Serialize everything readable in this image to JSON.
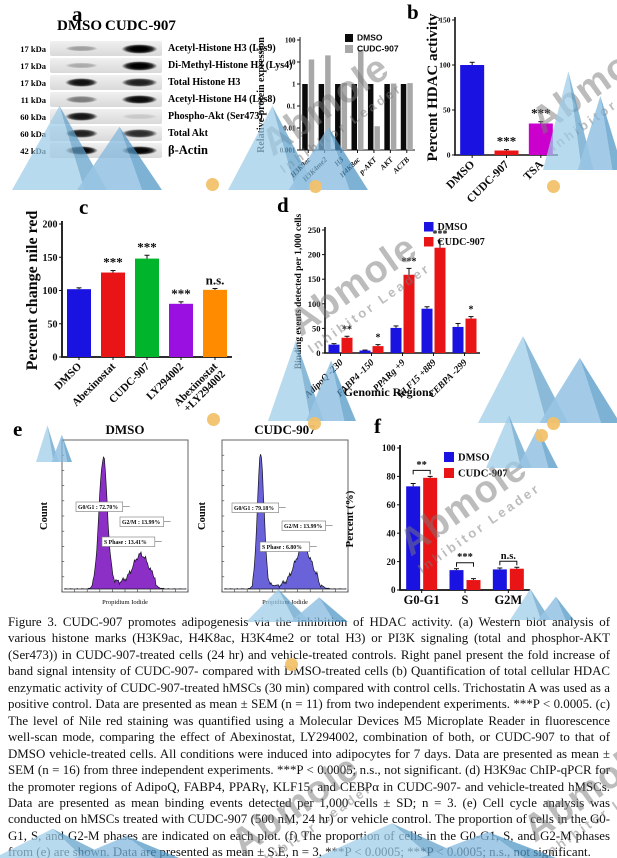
{
  "watermark": {
    "brand": "Abmole",
    "tagline": "Inhibitor Leader"
  },
  "panel_a": {
    "label": "a",
    "col_headers": [
      "DMSO",
      "CUDC-907"
    ],
    "blot_rows": [
      {
        "kda": "17 kDa",
        "protein": "Acetyl-Histone H3 (Lys9)",
        "lane1": 0.3,
        "lane2": 1.0
      },
      {
        "kda": "17 kDa",
        "protein": "Di-Methyl-Histone H3 (Lys4)",
        "lane1": 0.25,
        "lane2": 1.0
      },
      {
        "kda": "17 kDa",
        "protein": "Total Histone H3",
        "lane1": 0.92,
        "lane2": 0.85
      },
      {
        "kda": "11 kDa",
        "protein": "Acetyl-Histone H4 (Lys8)",
        "lane1": 0.45,
        "lane2": 0.95
      },
      {
        "kda": "60 kDa",
        "protein": "Phospho-Akt (Ser473)",
        "lane1": 0.9,
        "lane2": 0.12
      },
      {
        "kda": "60 kDa",
        "protein": "Total Akt",
        "lane1": 0.85,
        "lane2": 0.8
      },
      {
        "kda": "42 kDa",
        "protein": "β-Actin",
        "lane1": 0.97,
        "lane2": 0.97
      }
    ]
  },
  "panel_b": {
    "label": "b"
  },
  "panel_c": {
    "label": "c"
  },
  "panel_d": {
    "label": "d"
  },
  "panel_e": {
    "label": "e"
  },
  "panel_f": {
    "label": "f"
  },
  "chart_data": [
    {
      "id": "a_expression",
      "type": "bar",
      "yscale": "log",
      "ylabel": "Relative protein expression",
      "ylim": [
        0.001,
        100
      ],
      "yticks": [
        100,
        10,
        1,
        0.1,
        0.01,
        0.001
      ],
      "categories": [
        "H3K9ac",
        "H3K4me2",
        "H3",
        "H4K8ac",
        "p-AKT",
        "AKT",
        "ACTB"
      ],
      "series": [
        {
          "name": "DMSO",
          "color": "#0a0a0a",
          "values": [
            1,
            1,
            1,
            1,
            1,
            1,
            1
          ]
        },
        {
          "name": "CUDC-907",
          "color": "#a8a8a8",
          "values": [
            13,
            20,
            1.1,
            35,
            0.012,
            1.05,
            1.1
          ]
        }
      ],
      "legend_position": "top-right",
      "grid": false
    },
    {
      "id": "b_hdac",
      "type": "bar",
      "ylabel": "Percent HDAC activity",
      "ylim": [
        0,
        150
      ],
      "yticks": [
        0,
        50,
        100,
        150
      ],
      "categories": [
        "DMSO",
        "CUDC-907",
        "TSA"
      ],
      "series": [
        {
          "name": "",
          "values": [
            100,
            5,
            35
          ],
          "errors": [
            3,
            1,
            2
          ],
          "colors": [
            "#1a12e0",
            "#e81416",
            "#cc00cc"
          ]
        }
      ],
      "sig": [
        "",
        "***",
        "***"
      ],
      "grid": false
    },
    {
      "id": "c_nile",
      "type": "bar",
      "ylabel": "Percent change nile red",
      "ylim": [
        0,
        200
      ],
      "yticks": [
        0,
        50,
        100,
        150,
        200
      ],
      "categories": [
        "DMSO",
        "Abexinostat",
        "CUDC-907",
        "LY294002",
        "Abexinostat\n+LY294002"
      ],
      "series": [
        {
          "name": "",
          "values": [
            102,
            127,
            148,
            80,
            101
          ],
          "errors": [
            2,
            3,
            5,
            3,
            2
          ],
          "colors": [
            "#1a12e0",
            "#e81416",
            "#00b52c",
            "#9a10e0",
            "#ff8c00"
          ]
        }
      ],
      "sig": [
        "",
        "***",
        "***",
        "***",
        "n.s."
      ],
      "grid": false
    },
    {
      "id": "d_chip",
      "type": "bar",
      "ylabel": "Binding events detected per 1,000 cells",
      "xlabel": "Genomic Regions",
      "ylim": [
        0,
        250
      ],
      "yticks": [
        0,
        50,
        100,
        150,
        200,
        250
      ],
      "categories": [
        "AdipoQ -230",
        "FABP4 -150",
        "PPARg +9",
        "KLF15 +889",
        "CEBPA -299"
      ],
      "series": [
        {
          "name": "DMSO",
          "color": "#1a12e0",
          "values": [
            17,
            5,
            51,
            90,
            53
          ],
          "errors": [
            2,
            1,
            4,
            4,
            7
          ]
        },
        {
          "name": "CUDC-907",
          "color": "#e81416",
          "values": [
            31,
            14,
            159,
            214,
            70
          ],
          "errors": [
            3,
            3,
            13,
            14,
            4
          ]
        }
      ],
      "sig": [
        "**",
        "*",
        "***",
        "***",
        "*"
      ],
      "legend_position": "top-right",
      "grid": false
    },
    {
      "id": "f_cycle",
      "type": "bar",
      "ylabel": "Percent (%)",
      "ylim": [
        0,
        100
      ],
      "yticks": [
        0,
        20,
        40,
        60,
        80,
        100
      ],
      "categories": [
        "G0-G1",
        "S",
        "G2M"
      ],
      "series": [
        {
          "name": "DMSO",
          "color": "#1a12e0",
          "values": [
            73,
            14,
            14.5
          ],
          "errors": [
            2,
            1,
            1
          ]
        },
        {
          "name": "CUDC-907",
          "color": "#e81416",
          "values": [
            79,
            7,
            15
          ],
          "errors": [
            1,
            1,
            1
          ]
        }
      ],
      "sig": [
        "**",
        "***",
        "n.s."
      ],
      "legend_position": "top-right",
      "grid": false
    },
    {
      "id": "e_dmso",
      "type": "area",
      "title": "DMSO",
      "xlabel": "Propidium Iodide",
      "ylabel": "Count",
      "fill": "#8b2fc6",
      "annotations": [
        "G0/G1 : 72.70%",
        "S Phase : 13.41%",
        "G2/M : 13.99%"
      ]
    },
    {
      "id": "e_cudc",
      "type": "area",
      "title": "CUDC-907",
      "xlabel": "Propidium Iodide",
      "ylabel": "Count",
      "fill": "#6a62d8",
      "annotations": [
        "G0/G1 : 79.18%",
        "S Phase : 6.80%",
        "G2/M : 13.99%"
      ]
    }
  ],
  "caption": "Figure 3. CUDC-907 promotes adipogenesis via the inhibition of HDAC activity. (a) Western blot analysis of various histone marks (H3K9ac, H4K8ac, H3K4me2 or total H3) or PI3K signaling (total and phosphor-AKT (Ser473)) in CUDC-907-treated cells (24 hr) and vehicle-treated controls. Right panel present the fold increase of band signal intensity of CUDC-907- compared with DMSO-treated cells (b) Quantification of total cellular HDAC enzymatic activity of CUDC-907-treated hMSCs (30 min) compared with control cells. Trichostatin A was used as a positive control. Data are presented as mean ± SEM (n = 11) from two independent experiments. ***P < 0.0005. (c) The level of Nile red staining was quantified using a Molecular Devices M5 Microplate Reader in fluorescence well-scan mode, comparing the effect of Abexinostat, LY294002, combination of both, or CUDC-907 to that of DMSO vehicle-treated cells. All conditions were induced into adipocytes for 7 days. Data are presented as mean ± SEM (n = 16) from three independent experiments. ***P < 0.0005; n.s., not significant. (d) H3K9ac ChIP-qPCR for the promoter regions of AdipoQ, FABP4, PPARγ, KLF15, and CEBPα in CUDC-907- and vehicle-treated hMSCs. Data are presented as mean binding events detected per 1,000 cells ± SD; n = 3. (e) Cell cycle analysis was conducted on hMSCs treated with CUDC-907 (500 nM, 24 hr) or vehicle control. The proportion of cells in the G0-G1, S, and G2-M phases are indicated on each plot. (f) The proportion of cells in the G0-G1, S, and G2-M phases from (e) are shown. Data are presented as mean ± S.E, n = 3, ***P < 0.0005; ***P < 0.0005; n.s., not significant."
}
